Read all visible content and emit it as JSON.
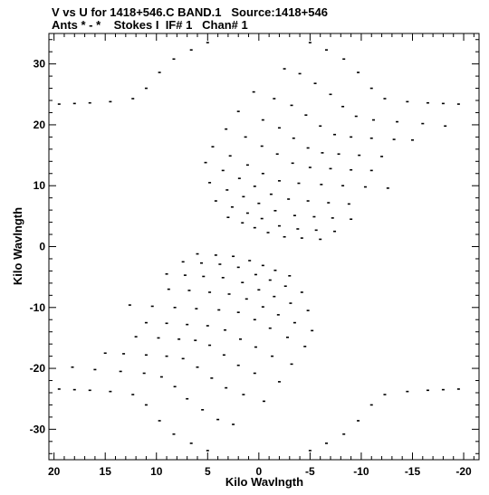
{
  "header": {
    "line1": "V vs U for 1418+546.C BAND.1   Source:1418+546",
    "line2": "Ants * - *    Stokes I  IF# 1   Chan# 1"
  },
  "chart_data": {
    "type": "scatter",
    "title": "V vs U for 1418+546.C BAND.1   Source:1418+546",
    "subtitle": "Ants * - *    Stokes I  IF# 1   Chan# 1",
    "xlabel": "Kilo Wavlngth",
    "ylabel": "Kilo Wavlngth",
    "xlim": [
      20.5,
      -21.5
    ],
    "ylim": [
      -35,
      35
    ],
    "x_ticks": [
      20,
      15,
      10,
      5,
      0,
      -5,
      -10,
      -15,
      -20
    ],
    "y_ticks": [
      30,
      20,
      10,
      0,
      -10,
      -20,
      -30
    ],
    "grid": false,
    "marker": "short dash",
    "series": [
      {
        "values": [
          [
            -5.0,
            33.5
          ],
          [
            -6.6,
            32.3
          ],
          [
            -8.3,
            30.8
          ],
          [
            -9.7,
            28.6
          ],
          [
            -11.0,
            26.0
          ],
          [
            -12.3,
            24.3
          ],
          [
            -14.5,
            23.8
          ],
          [
            -16.5,
            23.6
          ],
          [
            -18.0,
            23.5
          ],
          [
            -19.5,
            23.4
          ],
          [
            -2.5,
            29.2
          ],
          [
            -4.0,
            28.4
          ],
          [
            -5.5,
            26.8
          ],
          [
            -7.0,
            25.0
          ],
          [
            -8.2,
            23.0
          ],
          [
            -9.5,
            21.4
          ],
          [
            -11.2,
            20.8
          ],
          [
            -13.5,
            20.5
          ],
          [
            -16.0,
            20.2
          ],
          [
            -18.2,
            19.8
          ],
          [
            0.5,
            25.4
          ],
          [
            -1.5,
            24.3
          ],
          [
            -3.2,
            23.2
          ],
          [
            -4.6,
            21.6
          ],
          [
            -6.0,
            19.8
          ],
          [
            -7.4,
            18.4
          ],
          [
            -9.0,
            18.0
          ],
          [
            -11.0,
            17.8
          ],
          [
            -13.2,
            17.6
          ],
          [
            -15.0,
            17.5
          ],
          [
            2.0,
            22.2
          ],
          [
            -0.4,
            20.8
          ],
          [
            -2.0,
            19.5
          ],
          [
            -3.4,
            17.8
          ],
          [
            -4.8,
            16.2
          ],
          [
            -6.2,
            15.4
          ],
          [
            -7.8,
            15.2
          ],
          [
            -9.8,
            15.0
          ],
          [
            -12.0,
            14.8
          ],
          [
            3.2,
            19.3
          ],
          [
            1.3,
            18.0
          ],
          [
            -0.3,
            16.5
          ],
          [
            -1.8,
            15.2
          ],
          [
            -3.3,
            13.7
          ],
          [
            -5.0,
            13.0
          ],
          [
            -7.0,
            12.8
          ],
          [
            -9.0,
            12.6
          ],
          [
            -11.0,
            12.5
          ],
          [
            4.5,
            16.4
          ],
          [
            2.8,
            14.9
          ],
          [
            1.1,
            13.4
          ],
          [
            -0.4,
            12.0
          ],
          [
            -2.0,
            10.8
          ],
          [
            -3.9,
            10.4
          ],
          [
            -6.1,
            10.2
          ],
          [
            -8.2,
            10.0
          ],
          [
            -10.4,
            9.8
          ],
          [
            -12.6,
            9.6
          ],
          [
            5.2,
            13.8
          ],
          [
            3.5,
            12.5
          ],
          [
            1.9,
            11.2
          ],
          [
            0.4,
            9.9
          ],
          [
            -1.2,
            8.6
          ],
          [
            -2.9,
            7.8
          ],
          [
            -4.8,
            7.5
          ],
          [
            -6.8,
            7.2
          ],
          [
            -8.8,
            7.0
          ],
          [
            4.8,
            10.5
          ],
          [
            3.1,
            9.3
          ],
          [
            1.5,
            8.2
          ],
          [
            0.0,
            7.1
          ],
          [
            -1.6,
            5.9
          ],
          [
            -3.5,
            5.1
          ],
          [
            -5.4,
            4.9
          ],
          [
            -7.2,
            4.7
          ],
          [
            -9.0,
            4.5
          ],
          [
            4.2,
            7.5
          ],
          [
            2.6,
            6.5
          ],
          [
            1.1,
            5.5
          ],
          [
            -0.3,
            4.6
          ],
          [
            -2.0,
            3.4
          ],
          [
            -3.8,
            2.9
          ],
          [
            -5.6,
            2.7
          ],
          [
            -7.4,
            2.5
          ],
          [
            3.0,
            4.8
          ],
          [
            1.6,
            3.9
          ],
          [
            0.4,
            3.1
          ],
          [
            -0.9,
            2.3
          ],
          [
            -2.5,
            1.6
          ],
          [
            -4.2,
            1.4
          ],
          [
            -6.0,
            1.2
          ],
          [
            5.0,
            33.5
          ],
          [
            6.6,
            32.3
          ],
          [
            8.3,
            30.8
          ],
          [
            9.7,
            28.6
          ],
          [
            11.0,
            26.0
          ],
          [
            12.3,
            24.3
          ],
          [
            14.5,
            23.8
          ],
          [
            16.5,
            23.6
          ],
          [
            18.0,
            23.5
          ],
          [
            19.5,
            23.4
          ]
        ]
      }
    ]
  }
}
